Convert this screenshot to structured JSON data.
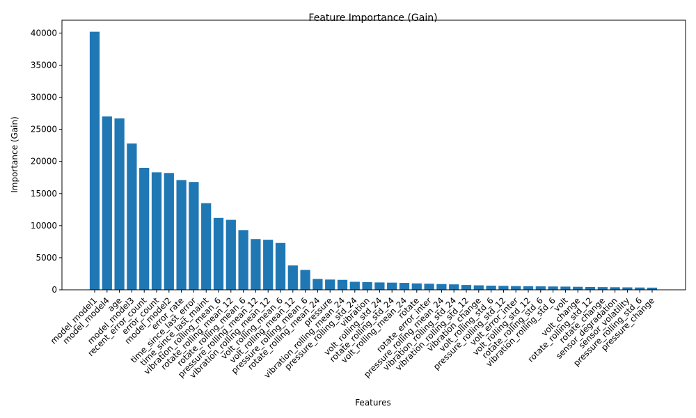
{
  "chart_data": {
    "type": "bar",
    "title": "Feature Importance (Gain)",
    "xlabel": "Features",
    "ylabel": "Importance (Gain)",
    "ylim": [
      0,
      42000
    ],
    "yticks": [
      0,
      5000,
      10000,
      15000,
      20000,
      25000,
      30000,
      35000,
      40000
    ],
    "grid": false,
    "bar_color": "#1f77b4",
    "categories": [
      "model_model1",
      "model_model4",
      "age",
      "model_model3",
      "recent_error_count",
      "error_count",
      "model_model2",
      "error_rate",
      "time_since_last_error",
      "time_since_last_maint",
      "vibration_rolling_mean_6",
      "rotate_rolling_mean_12",
      "rotate_rolling_mean_6",
      "pressure_rolling_mean_12",
      "vibration_rolling_mean_12",
      "volt_rolling_mean_6",
      "volt_rolling_mean_12",
      "pressure_rolling_mean_6",
      "rotate_rolling_mean_24",
      "pressure",
      "vibration_rolling_mean_24",
      "pressure_rolling_std_24",
      "vibration",
      "volt_rolling_std_24",
      "rotate_rolling_std_24",
      "volt_rolling_mean_24",
      "rotate",
      "rotate_error_inter",
      "pressure_rolling_mean_24",
      "vibration_rolling_std_24",
      "vibration_rolling_std_12",
      "vibration_change",
      "volt_rolling_std_6",
      "pressure_rolling_std_12",
      "volt_error_inter",
      "volt_rolling_std_12",
      "rotate_rolling_std_6",
      "vibration_rolling_std_6",
      "volt",
      "volt_change",
      "rotate_rolling_std_12",
      "rotate_change",
      "sensor_degradation",
      "sensor_volatility",
      "pressure_rolling_std_6",
      "pressure_change"
    ],
    "values": [
      40200,
      27000,
      26700,
      22800,
      19000,
      18300,
      18200,
      17100,
      16800,
      13500,
      11200,
      10900,
      9300,
      7900,
      7800,
      7300,
      3800,
      3100,
      1700,
      1600,
      1550,
      1250,
      1200,
      1150,
      1120,
      1080,
      1000,
      950,
      900,
      850,
      750,
      700,
      650,
      620,
      580,
      560,
      540,
      520,
      500,
      470,
      440,
      420,
      400,
      380,
      360,
      340
    ]
  }
}
